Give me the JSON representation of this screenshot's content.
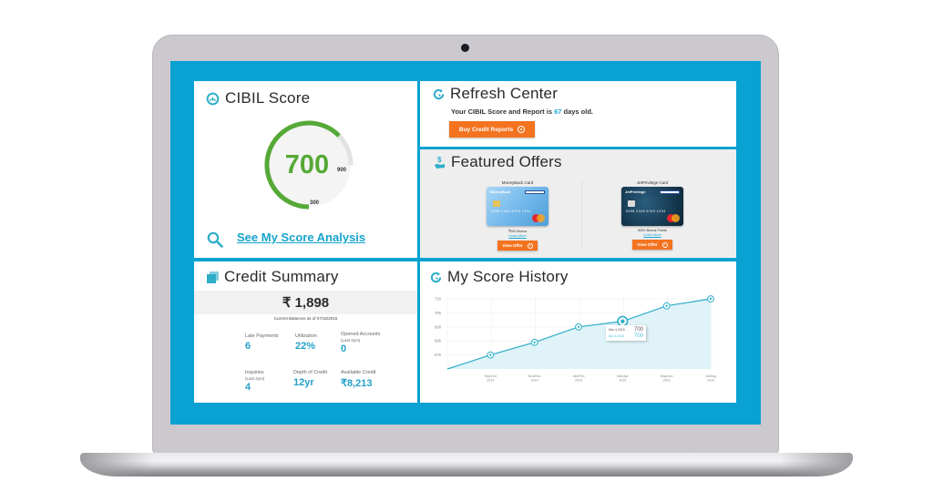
{
  "device": {
    "type": "laptop",
    "screen_color": "#0aa2d3",
    "bezel_color": "#cbc9ce"
  },
  "cibil_score": {
    "title": "CIBIL Score",
    "icon": "speedometer-icon",
    "score": "700",
    "max": "900",
    "min": "300",
    "gauge_color": "#55a936",
    "link_label": "See My Score Analysis",
    "link_icon": "search-icon"
  },
  "refresh_center": {
    "title": "Refresh Center",
    "icon": "refresh-icon",
    "text_before": "Your CIBIL Score and Report is ",
    "days": "67",
    "text_after": " days old.",
    "button_label": "Buy Credit Reports",
    "button_color": "#f47320"
  },
  "featured_offers": {
    "title": "Featured Offers",
    "icon": "money-hand-icon",
    "offers": [
      {
        "name": "MoneyBack Card",
        "card_brand": "MoneyBack",
        "card_number": "5398 2345 6789 1234",
        "bonus": "₹250 Bonus",
        "learn_more": "Learn More",
        "button_label": "View Offer"
      },
      {
        "name": "JetPrivilege Card",
        "card_brand": "JetPrivilege",
        "card_number": "5398 2345 6789 1234",
        "bonus": "5000 Bonus Points",
        "learn_more": "Learn More",
        "button_label": "View Offer"
      }
    ]
  },
  "credit_summary": {
    "title": "Credit Summary",
    "icon": "cards-stack-icon",
    "balance": "₹ 1,898",
    "balance_note": "Current Balances as of 07/16/2015",
    "stats": [
      {
        "label": "Late Payments",
        "sub": "",
        "value": "6"
      },
      {
        "label": "Utilization",
        "sub": "",
        "value": "22%"
      },
      {
        "label": "Opened Accounts",
        "sub": "(Last 2yrs)",
        "value": "0"
      },
      {
        "label": "Inquiries",
        "sub": "(Last 2yrs)",
        "value": "4"
      },
      {
        "label": "Depth of Credit",
        "sub": "",
        "value": "12yr"
      },
      {
        "label": "Available Credit",
        "sub": "",
        "value": "₹8,213"
      }
    ]
  },
  "score_history": {
    "title": "My Score History",
    "icon": "refresh-icon",
    "tooltip": {
      "row1_label": "Mar 4,2015",
      "row1_value": "700",
      "row2_label": "Apr 4,2015",
      "row2_value": "700"
    }
  },
  "chart_data": {
    "type": "area",
    "title": "My Score History",
    "xlabel": "",
    "ylabel": "",
    "categories": [
      "Sep/Oct 2014",
      "Nov/Dec 2014",
      "Jan/Feb 2015",
      "Mar/Apr 2015",
      "May/Jun 2015",
      "Jul/Aug 2015"
    ],
    "y_ticks": [
      "716",
      "706",
      "696",
      "686",
      "676"
    ],
    "ylim": [
      666,
      716
    ],
    "start_value": 666,
    "series": [
      {
        "name": "CIBIL Score",
        "values": [
          676,
          685,
          696,
          700,
          711,
          716
        ],
        "color": "#2eaec8"
      }
    ],
    "highlighted_point": {
      "category": "Mar/Apr 2015",
      "value": 700
    },
    "grid": true,
    "legend": "none"
  }
}
